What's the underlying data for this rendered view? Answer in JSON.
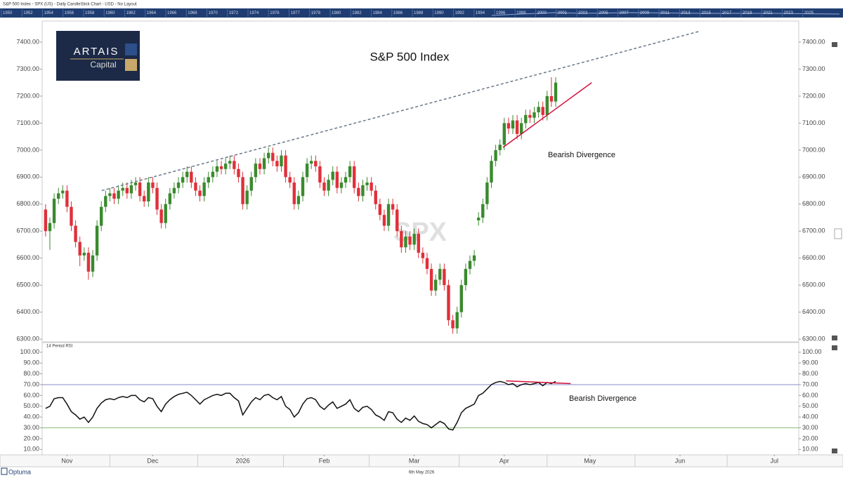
{
  "header": {
    "text": "S&P 500 Index - SPX (US) - Daily CandleStick Chart - USD - No Layout"
  },
  "navigator": {
    "years": [
      1950,
      1952,
      1954,
      1956,
      1958,
      1960,
      1962,
      1964,
      1966,
      1968,
      1970,
      1972,
      1974,
      1976,
      1977,
      1978,
      1980,
      1982,
      1984,
      1986,
      1988,
      1990,
      1992,
      1994,
      1996,
      1998,
      2000,
      2001,
      2003,
      2005,
      2007,
      2009,
      2011,
      2013,
      2015,
      2017,
      2019,
      2021,
      2023,
      2025
    ]
  },
  "chart_data": [
    {
      "type": "candlestick",
      "title": "S&P 500 Index",
      "logo": {
        "name": "ARTAIS",
        "sub": "Capital"
      },
      "watermark": "SPX",
      "annotation": "Bearish Divergence",
      "up_color": "#3a8a2e",
      "down_color": "#e0303a",
      "open": [
        6780,
        6700,
        6730,
        6820,
        6840,
        6850,
        6790,
        6720,
        6660,
        6610,
        6620,
        6550,
        6610,
        6720,
        6790,
        6830,
        6840,
        6820,
        6850,
        6860,
        6840,
        6870,
        6880,
        6830,
        6810,
        6880,
        6860,
        6780,
        6730,
        6800,
        6840,
        6860,
        6880,
        6900,
        6920,
        6880,
        6850,
        6830,
        6880,
        6900,
        6920,
        6940,
        6930,
        6950,
        6960,
        6930,
        6900,
        6800,
        6850,
        6900,
        6950,
        6930,
        6970,
        6990,
        6960,
        6940,
        6980,
        6900,
        6880,
        6800,
        6830,
        6900,
        6950,
        6960,
        6940,
        6880,
        6850,
        6890,
        6920,
        6860,
        6880,
        6900,
        6940,
        6860,
        6830,
        6870,
        6880,
        6850,
        6800,
        6760,
        6720,
        6800,
        6780,
        6700,
        6640,
        6680,
        6650,
        6690,
        6620,
        6600,
        6560,
        6480,
        6520,
        6560,
        6500,
        6370,
        6340,
        6400,
        6500,
        6560,
        6590,
        6740,
        6750,
        6800,
        6880,
        6960,
        7000,
        7020,
        7100,
        7080,
        7110,
        7060,
        7100,
        7130,
        7120,
        7140,
        7160,
        7130,
        7200,
        7180
      ],
      "high": [
        6800,
        6750,
        6840,
        6860,
        6870,
        6870,
        6810,
        6740,
        6680,
        6640,
        6640,
        6630,
        6740,
        6810,
        6850,
        6860,
        6860,
        6870,
        6880,
        6880,
        6890,
        6900,
        6900,
        6850,
        6900,
        6900,
        6880,
        6800,
        6820,
        6860,
        6880,
        6900,
        6920,
        6940,
        6940,
        6900,
        6870,
        6900,
        6920,
        6940,
        6960,
        6960,
        6970,
        6980,
        6980,
        6950,
        6920,
        6870,
        6920,
        6970,
        6970,
        6990,
        7010,
        7010,
        6980,
        7000,
        7000,
        6920,
        6900,
        6850,
        6920,
        6970,
        6980,
        6980,
        6960,
        6900,
        6910,
        6940,
        6940,
        6900,
        6920,
        6960,
        6960,
        6880,
        6890,
        6900,
        6900,
        6870,
        6820,
        6780,
        6820,
        6820,
        6800,
        6720,
        6700,
        6700,
        6710,
        6710,
        6640,
        6620,
        6580,
        6540,
        6580,
        6580,
        6520,
        6390,
        6420,
        6520,
        6580,
        6610,
        6630,
        6770,
        6820,
        6900,
        6980,
        7020,
        7040,
        7120,
        7120,
        7130,
        7130,
        7120,
        7150,
        7150,
        7160,
        7180,
        7180,
        7220,
        7270,
        7270
      ],
      "low": [
        6680,
        6630,
        6710,
        6800,
        6820,
        6770,
        6700,
        6640,
        6570,
        6590,
        6520,
        6530,
        6590,
        6700,
        6770,
        6810,
        6800,
        6800,
        6830,
        6820,
        6820,
        6850,
        6810,
        6790,
        6790,
        6840,
        6760,
        6710,
        6710,
        6780,
        6820,
        6840,
        6860,
        6880,
        6860,
        6830,
        6810,
        6810,
        6860,
        6880,
        6900,
        6910,
        6910,
        6930,
        6910,
        6880,
        6780,
        6780,
        6830,
        6880,
        6910,
        6910,
        6950,
        6940,
        6920,
        6920,
        6880,
        6860,
        6780,
        6780,
        6810,
        6880,
        6930,
        6920,
        6860,
        6830,
        6830,
        6870,
        6840,
        6840,
        6860,
        6880,
        6840,
        6810,
        6810,
        6850,
        6830,
        6780,
        6740,
        6700,
        6700,
        6760,
        6680,
        6620,
        6620,
        6630,
        6630,
        6600,
        6580,
        6540,
        6460,
        6460,
        6500,
        6480,
        6350,
        6320,
        6320,
        6380,
        6480,
        6540,
        6570,
        6720,
        6730,
        6780,
        6860,
        6940,
        6980,
        7000,
        7060,
        7060,
        7040,
        7040,
        7080,
        7100,
        7100,
        7120,
        7110,
        7110,
        7160,
        7160
      ],
      "close": [
        6700,
        6730,
        6820,
        6840,
        6850,
        6790,
        6720,
        6660,
        6610,
        6620,
        6550,
        6610,
        6720,
        6790,
        6830,
        6840,
        6820,
        6850,
        6860,
        6840,
        6870,
        6880,
        6830,
        6810,
        6880,
        6860,
        6780,
        6730,
        6800,
        6840,
        6860,
        6880,
        6900,
        6920,
        6880,
        6850,
        6830,
        6880,
        6900,
        6920,
        6940,
        6930,
        6950,
        6960,
        6930,
        6900,
        6800,
        6850,
        6900,
        6950,
        6930,
        6970,
        6990,
        6960,
        6940,
        6980,
        6900,
        6880,
        6800,
        6830,
        6900,
        6950,
        6960,
        6940,
        6880,
        6850,
        6890,
        6920,
        6860,
        6880,
        6900,
        6940,
        6860,
        6830,
        6870,
        6880,
        6850,
        6800,
        6760,
        6720,
        6800,
        6780,
        6700,
        6640,
        6680,
        6650,
        6690,
        6620,
        6600,
        6560,
        6480,
        6520,
        6560,
        6500,
        6370,
        6340,
        6400,
        6500,
        6560,
        6590,
        6610,
        6750,
        6800,
        6880,
        6960,
        7000,
        7020,
        7100,
        7080,
        7110,
        7060,
        7100,
        7130,
        7120,
        7140,
        7160,
        7130,
        7200,
        7180,
        7250
      ],
      "xlim": [
        -0.8,
        175.7
      ],
      "xticks": [
        {
          "value": 5,
          "label": "Nov"
        },
        {
          "value": 25,
          "label": "Dec"
        },
        {
          "value": 46,
          "label": "2026"
        },
        {
          "value": 65,
          "label": "Feb"
        },
        {
          "value": 86,
          "label": "Mar"
        },
        {
          "value": 107,
          "label": "Apr"
        },
        {
          "value": 127,
          "label": "May"
        },
        {
          "value": 148,
          "label": "Jun"
        },
        {
          "value": 170,
          "label": "Jul"
        }
      ],
      "ylim": [
        6290,
        7478
      ],
      "yticks": [
        {
          "value": 6300,
          "label": "6300.00"
        },
        {
          "value": 6400,
          "label": "6400.00"
        },
        {
          "value": 6500,
          "label": "6500.00"
        },
        {
          "value": 6600,
          "label": "6600.00"
        },
        {
          "value": 6700,
          "label": "6700.00"
        },
        {
          "value": 6800,
          "label": "6800.00"
        },
        {
          "value": 6900,
          "label": "6900.00"
        },
        {
          "value": 7000,
          "label": "7000.00"
        },
        {
          "value": 7100,
          "label": "7100.00"
        },
        {
          "value": 7200,
          "label": "7200.00"
        },
        {
          "value": 7300,
          "label": "7300.00"
        },
        {
          "value": 7400,
          "label": "7400.00"
        }
      ],
      "trendlines": [
        {
          "x": [
            13.1,
            152.5
          ],
          "y": [
            6850,
            7440
          ],
          "color": "#6a7888",
          "dashed": true
        },
        {
          "x": [
            106.7,
            127.4
          ],
          "y": [
            7010,
            7250
          ],
          "color": "#d0103a",
          "dashed": false
        }
      ]
    },
    {
      "type": "line",
      "label": "14 Period RSI",
      "annotation": "Bearish Divergence",
      "color": "#111111",
      "values": [
        48,
        50,
        57,
        58,
        58,
        52,
        45,
        42,
        38,
        40,
        35,
        40,
        48,
        53,
        56,
        57,
        56,
        58,
        59,
        58,
        60,
        60,
        56,
        54,
        58,
        57,
        50,
        45,
        52,
        56,
        59,
        61,
        62,
        63,
        60,
        56,
        52,
        56,
        58,
        60,
        61,
        60,
        62,
        62,
        58,
        55,
        42,
        48,
        54,
        58,
        56,
        60,
        61,
        58,
        56,
        59,
        50,
        47,
        40,
        44,
        52,
        57,
        58,
        56,
        50,
        47,
        51,
        54,
        48,
        50,
        52,
        56,
        48,
        45,
        49,
        50,
        47,
        42,
        40,
        37,
        45,
        44,
        38,
        35,
        39,
        37,
        41,
        36,
        34,
        33,
        30,
        33,
        36,
        34,
        29,
        28,
        35,
        44,
        48,
        50,
        52,
        60,
        62,
        66,
        70,
        72,
        73,
        72,
        70,
        71,
        68,
        70,
        71,
        70,
        71,
        72,
        69,
        72,
        71,
        73
      ],
      "ylim": [
        5,
        109
      ],
      "yticks": [
        {
          "value": 10,
          "label": "10.00"
        },
        {
          "value": 20,
          "label": "20.00"
        },
        {
          "value": 30,
          "label": "30.00"
        },
        {
          "value": 40,
          "label": "40.00"
        },
        {
          "value": 50,
          "label": "50.00"
        },
        {
          "value": 60,
          "label": "60.00"
        },
        {
          "value": 70,
          "label": "70.00"
        },
        {
          "value": 80,
          "label": "80.00"
        },
        {
          "value": 90,
          "label": "90.00"
        },
        {
          "value": 100,
          "label": "100.00"
        }
      ],
      "reference_lines": [
        {
          "value": 70,
          "color": "#8a8ac8"
        },
        {
          "value": 30,
          "color": "#8cc07a"
        }
      ],
      "trendlines": [
        {
          "x": [
            107.4,
            122.5
          ],
          "y": [
            73.5,
            71
          ],
          "color": "#d0103a",
          "dashed": false
        }
      ]
    }
  ],
  "footer": {
    "brand": "Optuma",
    "date": "6th May 2026"
  }
}
